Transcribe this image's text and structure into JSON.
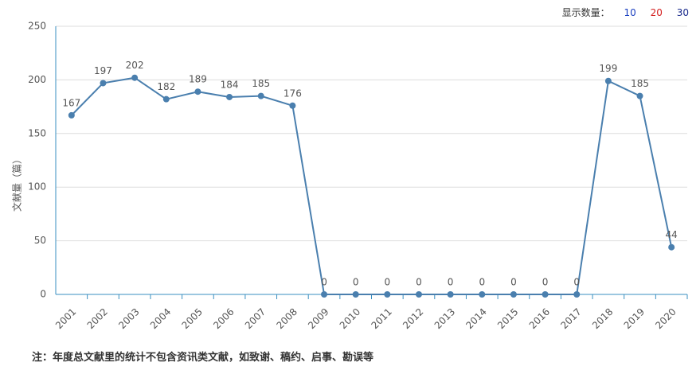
{
  "controls": {
    "label": "显示数量：",
    "options": [
      "10",
      "20",
      "30"
    ]
  },
  "chart_data": {
    "type": "line",
    "ylabel": "文献量（篇）",
    "categories": [
      "2001",
      "2002",
      "2003",
      "2004",
      "2005",
      "2006",
      "2007",
      "2008",
      "2009",
      "2010",
      "2011",
      "2012",
      "2013",
      "2014",
      "2015",
      "2016",
      "2017",
      "2018",
      "2019",
      "2020"
    ],
    "series": [
      {
        "name": "文献量",
        "color": "#4a7fae",
        "values": [
          167,
          197,
          202,
          182,
          189,
          184,
          185,
          176,
          0,
          0,
          0,
          0,
          0,
          0,
          0,
          0,
          0,
          199,
          185,
          44
        ]
      }
    ],
    "ylim": [
      0,
      250
    ],
    "yticks": [
      0,
      50,
      100,
      150,
      200,
      250
    ],
    "grid": true
  },
  "note": "注：年度总文献里的统计不包含资讯类文献，如致谢、稿约、启事、勘误等"
}
